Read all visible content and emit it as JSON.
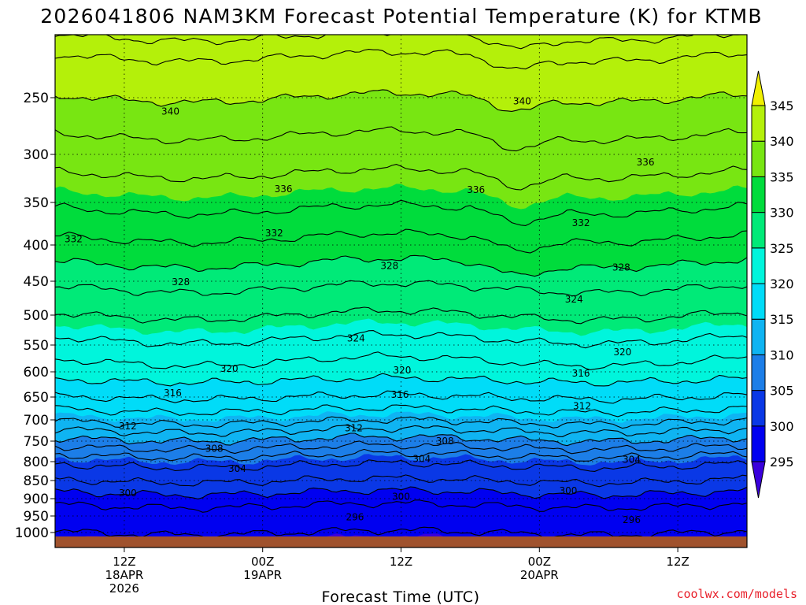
{
  "chart_data": {
    "type": "heatmap",
    "title": "2026041806 NAM3KM Forecast Potential Temperature (K) for KTMB",
    "xlabel": "Forecast Time (UTC)",
    "ylabel": "",
    "y_ticks": [
      "250",
      "300",
      "350",
      "400",
      "450",
      "500",
      "550",
      "600",
      "650",
      "700",
      "750",
      "800",
      "850",
      "900",
      "950",
      "1000"
    ],
    "y_values_hPa": [
      250,
      300,
      350,
      400,
      450,
      500,
      550,
      600,
      650,
      700,
      750,
      800,
      850,
      900,
      950,
      1000
    ],
    "ylim_hPa": [
      200,
      1020
    ],
    "x_range_hours": [
      0,
      60
    ],
    "x_ticks": [
      {
        "hour": 6,
        "line1": "12Z",
        "line2": "18APR",
        "line3": "2026"
      },
      {
        "hour": 18,
        "line1": "00Z",
        "line2": "19APR",
        "line3": ""
      },
      {
        "hour": 30,
        "line1": "12Z",
        "line2": "",
        "line3": ""
      },
      {
        "hour": 42,
        "line1": "00Z",
        "line2": "20APR",
        "line3": ""
      },
      {
        "hour": 54,
        "line1": "12Z",
        "line2": "",
        "line3": ""
      }
    ],
    "colorbar": {
      "ticks": [
        "295",
        "300",
        "305",
        "310",
        "315",
        "320",
        "325",
        "330",
        "335",
        "340",
        "345"
      ],
      "bins": [
        {
          "min": 290,
          "max": 295,
          "color": "#3a00dc"
        },
        {
          "min": 295,
          "max": 300,
          "color": "#0000f0"
        },
        {
          "min": 300,
          "max": 305,
          "color": "#0a38e6"
        },
        {
          "min": 305,
          "max": 310,
          "color": "#1c7ee8"
        },
        {
          "min": 310,
          "max": 315,
          "color": "#0fb4f2"
        },
        {
          "min": 315,
          "max": 320,
          "color": "#00dcf8"
        },
        {
          "min": 320,
          "max": 325,
          "color": "#00f5dc"
        },
        {
          "min": 325,
          "max": 330,
          "color": "#00ea78"
        },
        {
          "min": 330,
          "max": 335,
          "color": "#00dc3c"
        },
        {
          "min": 335,
          "max": 340,
          "color": "#78e612"
        },
        {
          "min": 340,
          "max": 345,
          "color": "#b4f00a"
        },
        {
          "min": 345,
          "max": 350,
          "color": "#f0f000"
        }
      ]
    },
    "band_levels_K": [
      295,
      300,
      305,
      310,
      315,
      320,
      325,
      330,
      335,
      340
    ],
    "profile": {
      "pressure_hPa": [
        200,
        250,
        300,
        350,
        400,
        450,
        500,
        550,
        600,
        650,
        700,
        750,
        800,
        850,
        900,
        950,
        1000
      ],
      "theta_K": [
        343,
        340,
        337,
        334.5,
        331.5,
        328.5,
        326,
        323.5,
        321,
        318,
        314.5,
        309.5,
        304.5,
        302,
        299,
        296.5,
        296
      ]
    },
    "contour_levels_K": [
      296,
      298,
      300,
      302,
      304,
      306,
      308,
      310,
      312,
      314,
      316,
      318,
      320,
      322,
      324,
      326,
      328,
      330,
      332,
      334,
      336,
      338,
      340,
      342,
      344
    ],
    "contour_labels": [
      {
        "text": "340",
        "hour": 10.0,
        "p": 262
      },
      {
        "text": "340",
        "hour": 40.5,
        "p": 253
      },
      {
        "text": "336",
        "hour": 19.8,
        "p": 336
      },
      {
        "text": "336",
        "hour": 36.5,
        "p": 337
      },
      {
        "text": "336",
        "hour": 51.2,
        "p": 308
      },
      {
        "text": "332",
        "hour": 1.6,
        "p": 393
      },
      {
        "text": "332",
        "hour": 19.0,
        "p": 386
      },
      {
        "text": "332",
        "hour": 45.6,
        "p": 374
      },
      {
        "text": "328",
        "hour": 10.9,
        "p": 451
      },
      {
        "text": "328",
        "hour": 29.0,
        "p": 429
      },
      {
        "text": "328",
        "hour": 49.1,
        "p": 431
      },
      {
        "text": "324",
        "hour": 26.1,
        "p": 539
      },
      {
        "text": "324",
        "hour": 45.0,
        "p": 477
      },
      {
        "text": "320",
        "hour": 15.1,
        "p": 594
      },
      {
        "text": "320",
        "hour": 30.1,
        "p": 597
      },
      {
        "text": "320",
        "hour": 49.2,
        "p": 563
      },
      {
        "text": "316",
        "hour": 10.2,
        "p": 642
      },
      {
        "text": "316",
        "hour": 29.9,
        "p": 645
      },
      {
        "text": "316",
        "hour": 45.6,
        "p": 603
      },
      {
        "text": "312",
        "hour": 6.3,
        "p": 715
      },
      {
        "text": "312",
        "hour": 25.9,
        "p": 719
      },
      {
        "text": "312",
        "hour": 45.7,
        "p": 670
      },
      {
        "text": "308",
        "hour": 13.8,
        "p": 768
      },
      {
        "text": "308",
        "hour": 33.8,
        "p": 750
      },
      {
        "text": "304",
        "hour": 15.8,
        "p": 819
      },
      {
        "text": "304",
        "hour": 31.8,
        "p": 793
      },
      {
        "text": "304",
        "hour": 50.0,
        "p": 795
      },
      {
        "text": "300",
        "hour": 6.3,
        "p": 885
      },
      {
        "text": "300",
        "hour": 30.0,
        "p": 895
      },
      {
        "text": "300",
        "hour": 44.5,
        "p": 878
      },
      {
        "text": "296",
        "hour": 26.0,
        "p": 954
      },
      {
        "text": "296",
        "hour": 50.0,
        "p": 962
      }
    ]
  },
  "credit": "coolwx.com/models"
}
